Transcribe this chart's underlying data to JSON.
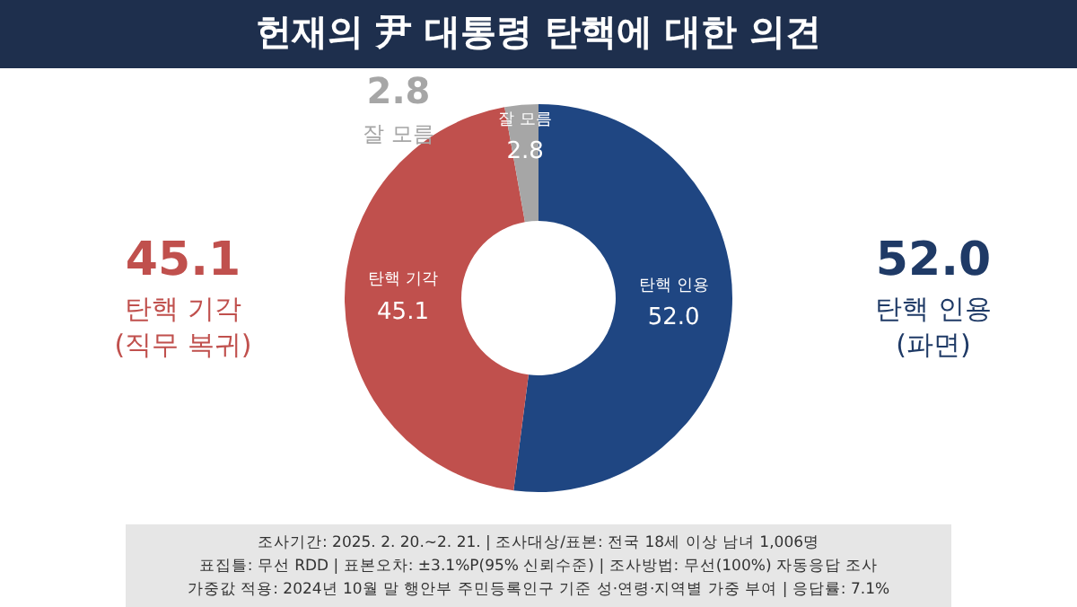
{
  "chart_data": {
    "type": "donut",
    "title": "헌재의 尹 대통령 탄핵에 대한 의견",
    "categories": [
      "탄핵 인용",
      "탄핵 기각",
      "잘 모름"
    ],
    "values": [
      52.0,
      45.1,
      2.8
    ],
    "colors": [
      "#1f4682",
      "#c0504d",
      "#a6a6a6"
    ],
    "value_labels": [
      "52.0",
      "45.1",
      "2.8"
    ],
    "annotations": [
      "52.0",
      "탄핵 인용",
      "(파면)",
      "45.1",
      "탄핵 기각",
      "(직무 복귀)",
      "2.8",
      "잘 모름",
      "조사기간: 2025. 2. 20.~2. 21. | 조사대상/표본: 전국 18세 이상 남녀 1,006명",
      "표집틀: 무선 RDD | 표본오차: ±3.1%P(95% 신뢰수준) | 조사방법: 무선(100%) 자동응답 조사",
      "가중값 적용: 2024년 10월 말 행안부 주민등록인구 기준 성·연령·지역별 가중 부여 | 응답률: 7.1%"
    ]
  }
}
